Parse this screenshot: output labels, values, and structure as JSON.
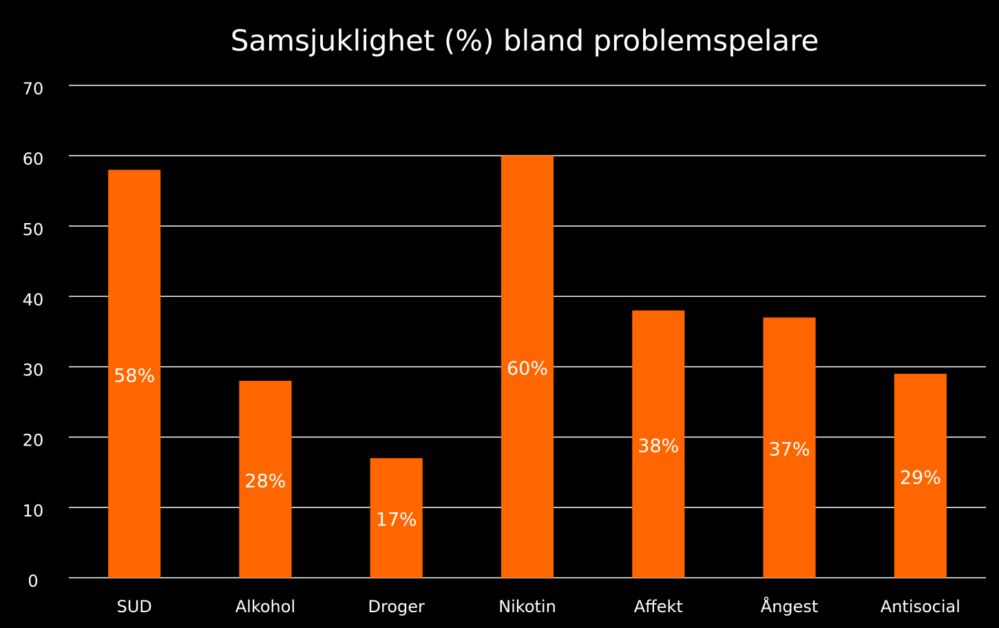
{
  "chart_data": {
    "type": "bar",
    "title": "Samsjuklighet (%) bland problemspelare",
    "categories": [
      "SUD",
      "Alkohol",
      "Droger",
      "Nikotin",
      "Affekt",
      "Ångest",
      "Antisocial"
    ],
    "values": [
      58,
      28,
      17,
      60,
      38,
      37,
      29
    ],
    "value_labels": [
      "58%",
      "28%",
      "17%",
      "60%",
      "38%",
      "37%",
      "29%"
    ],
    "color": "#ff6600",
    "ylim": [
      0,
      70
    ],
    "yticks": [
      0,
      10,
      20,
      30,
      40,
      50,
      60,
      70
    ],
    "grid": true
  }
}
